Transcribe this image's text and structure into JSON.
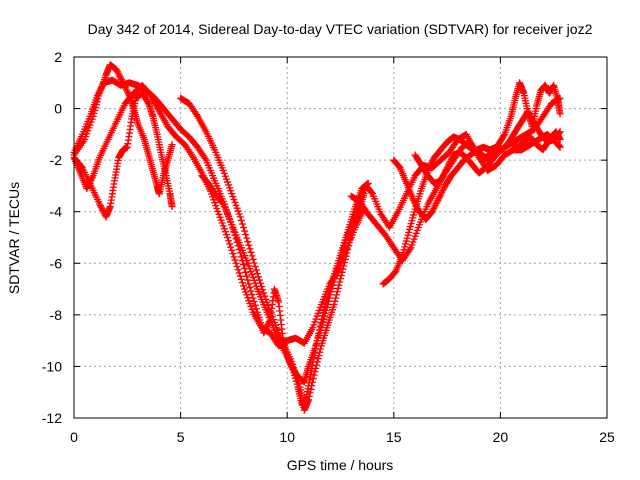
{
  "chart_data": {
    "type": "scatter",
    "title": "Day 342 of 2014, Sidereal Day-to-day VTEC variation (SDTVAR) for receiver joz2",
    "xlabel": "GPS time / hours",
    "ylabel": "SDTVAR / TECUs",
    "xlim": [
      0,
      25
    ],
    "ylim": [
      -12,
      2
    ],
    "xticks": [
      "0",
      "5",
      "10",
      "15",
      "20",
      "25"
    ],
    "yticks": [
      "2",
      "0",
      "-2",
      "-4",
      "-6",
      "-8",
      "-10",
      "-12"
    ],
    "grid": true,
    "marker": "+",
    "series_color": "#ff0000",
    "series": [
      {
        "points": [
          [
            0,
            -1.9
          ],
          [
            0.4,
            -2.3
          ],
          [
            0.8,
            -3
          ],
          [
            1.2,
            -3.7
          ],
          [
            1.5,
            -4.2
          ],
          [
            1.7,
            -3.8
          ],
          [
            1.9,
            -2.8
          ],
          [
            2.1,
            -1.9
          ],
          [
            2.3,
            -1.6
          ],
          [
            2.5,
            -1.5
          ],
          [
            2.7,
            -0.4
          ],
          [
            2.9,
            0.4
          ],
          [
            3.2,
            0.6
          ],
          [
            3.5,
            0.2
          ],
          [
            3.7,
            -0.3
          ],
          [
            3.9,
            -1.0
          ],
          [
            4.1,
            -1.8
          ],
          [
            4.3,
            -2.5
          ],
          [
            4.5,
            -3.3
          ],
          [
            4.6,
            -3.8
          ]
        ]
      },
      {
        "points": [
          [
            0,
            -1.8
          ],
          [
            0.5,
            -1.2
          ],
          [
            0.9,
            -0.3
          ],
          [
            1.2,
            0.6
          ],
          [
            1.5,
            1.3
          ],
          [
            1.7,
            1.7
          ],
          [
            2.0,
            1.5
          ],
          [
            2.3,
            1.0
          ],
          [
            2.6,
            0.5
          ],
          [
            2.8,
            0.0
          ],
          [
            3.0,
            -0.6
          ],
          [
            3.3,
            -1.2
          ],
          [
            3.5,
            -1.8
          ],
          [
            3.7,
            -2.4
          ],
          [
            3.9,
            -3.0
          ],
          [
            4.0,
            -3.3
          ],
          [
            4.2,
            -2.6
          ],
          [
            4.4,
            -2.0
          ],
          [
            4.6,
            -1.4
          ]
        ]
      },
      {
        "points": [
          [
            0,
            -1.7
          ],
          [
            0.4,
            -1.0
          ],
          [
            0.8,
            -0.2
          ],
          [
            1.1,
            0.5
          ],
          [
            1.4,
            1.0
          ],
          [
            1.8,
            1.1
          ],
          [
            2.2,
            0.9
          ],
          [
            2.6,
            1.0
          ],
          [
            3.0,
            0.9
          ],
          [
            3.4,
            0.7
          ],
          [
            3.8,
            0.4
          ],
          [
            4.2,
            0.0
          ],
          [
            4.6,
            -0.4
          ],
          [
            5.0,
            -0.8
          ],
          [
            5.4,
            -1.1
          ],
          [
            5.8,
            -1.5
          ],
          [
            6.2,
            -2.0
          ],
          [
            6.6,
            -2.8
          ],
          [
            7.0,
            -3.6
          ],
          [
            7.4,
            -4.5
          ],
          [
            7.8,
            -5.3
          ],
          [
            8.2,
            -6.1
          ],
          [
            8.6,
            -7.0
          ],
          [
            9.0,
            -7.8
          ],
          [
            9.4,
            -8.6
          ],
          [
            9.8,
            -9.3
          ],
          [
            10.2,
            -9.9
          ],
          [
            10.5,
            -10.8
          ],
          [
            10.7,
            -11.5
          ],
          [
            10.9,
            -11.2
          ],
          [
            11.1,
            -10.3
          ],
          [
            11.4,
            -9.0
          ],
          [
            11.7,
            -7.9
          ],
          [
            12.0,
            -7.0
          ],
          [
            12.3,
            -6.2
          ],
          [
            12.6,
            -5.4
          ],
          [
            12.9,
            -4.6
          ],
          [
            13.2,
            -3.8
          ],
          [
            13.5,
            -3.1
          ],
          [
            13.8,
            -2.9
          ]
        ]
      },
      {
        "points": [
          [
            0,
            -1.9
          ],
          [
            0.3,
            -2.5
          ],
          [
            0.6,
            -3.1
          ],
          [
            0.9,
            -2.6
          ],
          [
            1.2,
            -1.9
          ],
          [
            1.6,
            -1.2
          ],
          [
            2.0,
            -0.5
          ],
          [
            2.4,
            0.2
          ],
          [
            2.8,
            0.6
          ],
          [
            3.2,
            0.9
          ],
          [
            3.6,
            0.5
          ],
          [
            4.0,
            -0.1
          ],
          [
            4.4,
            -0.7
          ],
          [
            4.8,
            -1.1
          ],
          [
            5.2,
            -1.4
          ],
          [
            5.6,
            -1.9
          ],
          [
            6.0,
            -2.5
          ],
          [
            6.4,
            -3.2
          ],
          [
            6.8,
            -4.1
          ],
          [
            7.2,
            -5.0
          ],
          [
            7.6,
            -6.0
          ],
          [
            8.0,
            -7.0
          ],
          [
            8.4,
            -7.9
          ],
          [
            8.8,
            -8.5
          ],
          [
            9.2,
            -8.7
          ],
          [
            9.6,
            -9.2
          ],
          [
            10.0,
            -9.0
          ],
          [
            10.4,
            -8.9
          ],
          [
            10.8,
            -9.1
          ],
          [
            11.2,
            -8.5
          ],
          [
            11.6,
            -7.6
          ],
          [
            12.0,
            -6.8
          ],
          [
            12.4,
            -6.3
          ],
          [
            12.8,
            -5.4
          ],
          [
            13.2,
            -4.6
          ],
          [
            13.6,
            -3.9
          ]
        ]
      },
      {
        "points": [
          [
            5.0,
            0.4
          ],
          [
            5.4,
            0.2
          ],
          [
            5.8,
            -0.3
          ],
          [
            6.2,
            -0.9
          ],
          [
            6.6,
            -1.6
          ],
          [
            7.0,
            -2.4
          ],
          [
            7.4,
            -3.3
          ],
          [
            7.8,
            -4.2
          ],
          [
            8.2,
            -5.3
          ],
          [
            8.6,
            -6.4
          ],
          [
            9.0,
            -7.4
          ],
          [
            9.4,
            -8.3
          ],
          [
            9.8,
            -9.1
          ],
          [
            10.2,
            -9.8
          ],
          [
            10.6,
            -10.8
          ],
          [
            10.8,
            -11.7
          ],
          [
            11.0,
            -11.3
          ],
          [
            11.3,
            -10.2
          ],
          [
            11.6,
            -9.2
          ],
          [
            11.9,
            -8.4
          ],
          [
            12.2,
            -7.6
          ],
          [
            12.5,
            -6.6
          ],
          [
            12.8,
            -5.6
          ],
          [
            13.1,
            -4.5
          ],
          [
            13.4,
            -3.5
          ],
          [
            13.7,
            -3.0
          ],
          [
            14.0,
            -3.3
          ],
          [
            14.4,
            -4.1
          ],
          [
            14.8,
            -4.6
          ],
          [
            15.2,
            -4.0
          ],
          [
            15.6,
            -3.3
          ],
          [
            16.0,
            -2.6
          ],
          [
            16.4,
            -2.2
          ],
          [
            16.8,
            -2.3
          ],
          [
            17.2,
            -2.0
          ],
          [
            17.6,
            -1.7
          ],
          [
            18.0,
            -1.2
          ],
          [
            18.4,
            -1.0
          ],
          [
            18.8,
            -1.6
          ],
          [
            19.2,
            -2.0
          ],
          [
            19.6,
            -1.8
          ],
          [
            20.0,
            -1.6
          ],
          [
            20.4,
            -1.4
          ],
          [
            20.8,
            -1.2
          ],
          [
            21.2,
            -1.0
          ],
          [
            21.6,
            -0.8
          ],
          [
            22.0,
            -0.3
          ],
          [
            22.4,
            0.2
          ],
          [
            22.8,
            0.4
          ]
        ]
      },
      {
        "points": [
          [
            6.0,
            -2.6
          ],
          [
            6.3,
            -2.9
          ],
          [
            6.6,
            -3.3
          ],
          [
            7.0,
            -3.7
          ],
          [
            7.4,
            -4.5
          ],
          [
            7.8,
            -5.6
          ],
          [
            8.2,
            -6.8
          ],
          [
            8.6,
            -7.9
          ],
          [
            8.9,
            -8.7
          ],
          [
            9.2,
            -8.2
          ],
          [
            9.4,
            -7.0
          ],
          [
            9.6,
            -7.5
          ],
          [
            9.8,
            -8.9
          ],
          [
            10.0,
            -9.6
          ],
          [
            10.2,
            -10.0
          ],
          [
            10.5,
            -10.4
          ],
          [
            10.8,
            -10.6
          ],
          [
            11.0,
            -10.0
          ],
          [
            11.3,
            -9.3
          ],
          [
            11.6,
            -8.5
          ],
          [
            11.9,
            -7.6
          ],
          [
            12.2,
            -6.6
          ],
          [
            12.5,
            -5.9
          ],
          [
            12.8,
            -5.0
          ],
          [
            13.1,
            -4.4
          ],
          [
            13.4,
            -3.9
          ],
          [
            13.6,
            -3.3
          ]
        ]
      },
      {
        "points": [
          [
            13.0,
            -3.4
          ],
          [
            13.4,
            -3.6
          ],
          [
            13.8,
            -4.1
          ],
          [
            14.2,
            -4.5
          ],
          [
            14.6,
            -4.9
          ],
          [
            15.0,
            -5.4
          ],
          [
            15.4,
            -5.9
          ],
          [
            15.8,
            -5.4
          ],
          [
            16.2,
            -4.5
          ],
          [
            16.6,
            -3.7
          ],
          [
            17.0,
            -3.1
          ],
          [
            17.4,
            -2.5
          ],
          [
            17.8,
            -2.0
          ],
          [
            18.2,
            -1.5
          ],
          [
            18.6,
            -1.3
          ],
          [
            19.0,
            -1.9
          ],
          [
            19.4,
            -2.4
          ],
          [
            19.8,
            -2.2
          ],
          [
            20.2,
            -1.8
          ],
          [
            20.6,
            -1.6
          ],
          [
            21.0,
            -1.6
          ],
          [
            21.4,
            -1.4
          ],
          [
            21.8,
            -1.2
          ],
          [
            22.2,
            -1.0
          ],
          [
            22.6,
            -1.3
          ],
          [
            22.8,
            -1.5
          ]
        ]
      },
      {
        "points": [
          [
            14.5,
            -6.8
          ],
          [
            14.8,
            -6.6
          ],
          [
            15.1,
            -6.3
          ],
          [
            15.4,
            -5.7
          ],
          [
            15.7,
            -4.8
          ],
          [
            16.0,
            -3.9
          ],
          [
            16.3,
            -3.1
          ],
          [
            16.6,
            -2.4
          ],
          [
            16.9,
            -1.9
          ],
          [
            17.2,
            -1.6
          ],
          [
            17.5,
            -1.3
          ],
          [
            17.8,
            -1.1
          ],
          [
            18.1,
            -1.2
          ],
          [
            18.4,
            -1.4
          ],
          [
            18.7,
            -1.6
          ],
          [
            19.0,
            -1.7
          ],
          [
            19.3,
            -1.9
          ],
          [
            19.6,
            -1.7
          ],
          [
            19.9,
            -1.4
          ],
          [
            20.2,
            -1.0
          ],
          [
            20.5,
            -0.3
          ],
          [
            20.7,
            0.4
          ],
          [
            20.9,
            1.0
          ],
          [
            21.1,
            0.6
          ],
          [
            21.3,
            -0.2
          ],
          [
            21.5,
            -0.7
          ],
          [
            21.7,
            0.1
          ],
          [
            21.9,
            0.7
          ],
          [
            22.1,
            0.9
          ],
          [
            22.3,
            0.6
          ],
          [
            22.5,
            0.9
          ],
          [
            22.7,
            0.3
          ],
          [
            22.8,
            -0.2
          ]
        ]
      },
      {
        "points": [
          [
            15.0,
            -2.0
          ],
          [
            15.3,
            -2.3
          ],
          [
            15.6,
            -2.9
          ],
          [
            15.9,
            -3.5
          ],
          [
            16.2,
            -4.0
          ],
          [
            16.5,
            -4.3
          ],
          [
            16.8,
            -4.0
          ],
          [
            17.1,
            -3.5
          ],
          [
            17.4,
            -3.0
          ],
          [
            17.7,
            -2.6
          ],
          [
            18.0,
            -2.3
          ],
          [
            18.3,
            -2.0
          ],
          [
            18.6,
            -1.8
          ],
          [
            18.9,
            -1.6
          ],
          [
            19.2,
            -1.5
          ],
          [
            19.5,
            -1.6
          ],
          [
            19.8,
            -1.5
          ],
          [
            20.1,
            -1.6
          ],
          [
            20.4,
            -1.3
          ],
          [
            20.7,
            -0.9
          ],
          [
            21.0,
            -0.5
          ],
          [
            21.3,
            -0.1
          ],
          [
            21.6,
            -0.6
          ],
          [
            21.9,
            -1.0
          ],
          [
            22.2,
            -1.3
          ],
          [
            22.5,
            -1.2
          ],
          [
            22.8,
            -0.9
          ]
        ]
      },
      {
        "points": [
          [
            16.0,
            -1.8
          ],
          [
            16.3,
            -2.2
          ],
          [
            16.6,
            -2.6
          ],
          [
            16.9,
            -2.9
          ],
          [
            17.2,
            -2.8
          ],
          [
            17.5,
            -2.3
          ],
          [
            17.8,
            -1.8
          ],
          [
            18.1,
            -1.7
          ],
          [
            18.4,
            -1.9
          ],
          [
            18.7,
            -2.2
          ],
          [
            19.0,
            -2.5
          ],
          [
            19.3,
            -2.3
          ],
          [
            19.6,
            -2.0
          ],
          [
            19.9,
            -1.7
          ],
          [
            20.2,
            -1.5
          ],
          [
            20.5,
            -1.3
          ],
          [
            20.8,
            -1.5
          ],
          [
            21.1,
            -1.3
          ],
          [
            21.4,
            -1.1
          ],
          [
            21.7,
            -1.4
          ],
          [
            22.0,
            -1.6
          ],
          [
            22.3,
            -1.2
          ],
          [
            22.6,
            -0.9
          ],
          [
            22.8,
            -1.2
          ]
        ]
      }
    ]
  }
}
